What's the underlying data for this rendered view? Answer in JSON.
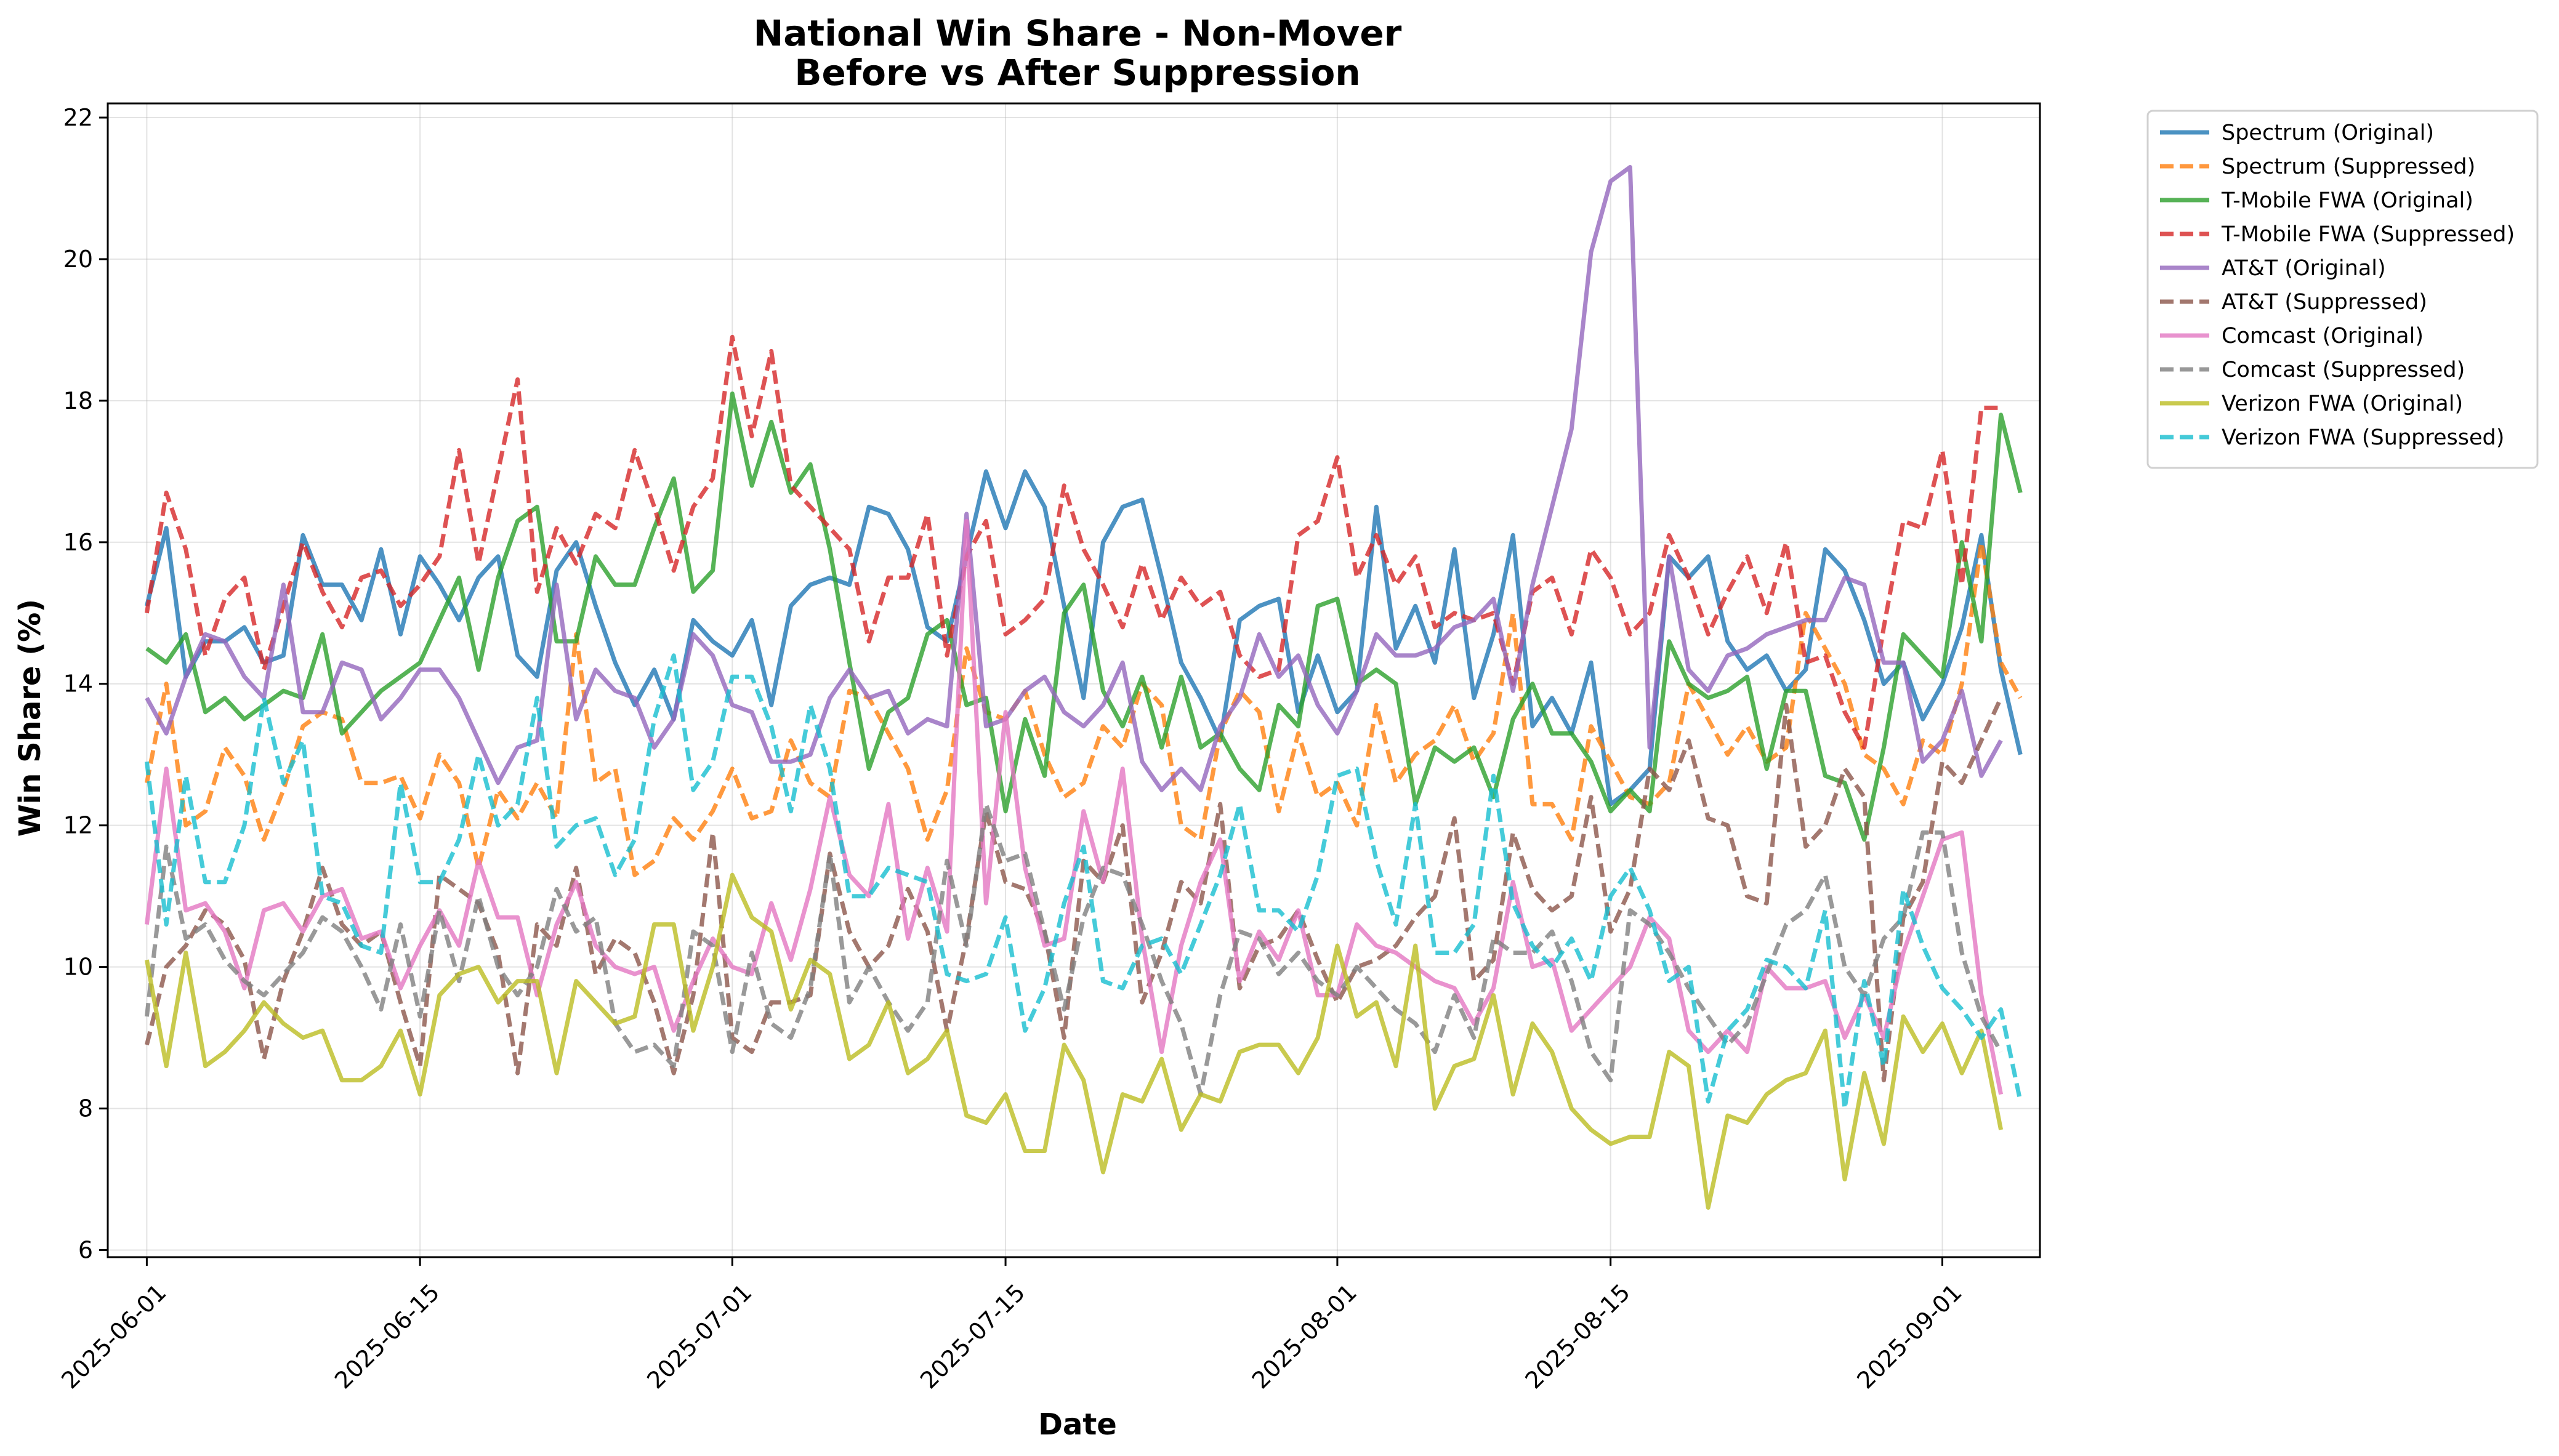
{
  "chart_data": {
    "type": "line",
    "title": "National Win Share - Non-Mover",
    "subtitle": "Before vs After Suppression",
    "xlabel": "Date",
    "ylabel": "Win Share (%)",
    "x_start": "2025-06-01",
    "x_step_days": 1,
    "xlim": [
      "2025-05-30",
      "2025-09-06"
    ],
    "ylim": [
      5.9,
      22.2
    ],
    "x_ticks": [
      "2025-06-01",
      "2025-06-15",
      "2025-07-01",
      "2025-07-15",
      "2025-08-01",
      "2025-08-15",
      "2025-09-01"
    ],
    "y_ticks": [
      6,
      8,
      10,
      12,
      14,
      16,
      18,
      20,
      22
    ],
    "grid": true,
    "legend_position": "outside-right-top",
    "series": [
      {
        "name": "Spectrum (Original)",
        "color": "#1f77b4",
        "style": "solid",
        "values": [
          15.1,
          16.2,
          14.1,
          14.6,
          14.6,
          14.8,
          14.3,
          14.4,
          16.1,
          15.4,
          15.4,
          14.9,
          15.9,
          14.7,
          15.8,
          15.4,
          14.9,
          15.5,
          15.8,
          14.4,
          14.1,
          15.6,
          16.0,
          15.1,
          14.3,
          13.7,
          14.2,
          13.5,
          14.9,
          14.6,
          14.4,
          14.9,
          13.7,
          15.1,
          15.4,
          15.5,
          15.4,
          16.5,
          16.4,
          15.9,
          14.8,
          14.6,
          15.8,
          17.0,
          16.2,
          17.0,
          16.5,
          15.1,
          13.8,
          16.0,
          16.5,
          16.6,
          15.5,
          14.3,
          13.8,
          13.2,
          14.9,
          15.1,
          15.2,
          13.6,
          14.4,
          13.6,
          13.9,
          16.5,
          14.5,
          15.1,
          14.3,
          15.9,
          13.8,
          14.7,
          16.1,
          13.4,
          13.8,
          13.3,
          14.3,
          12.3,
          12.5,
          12.8,
          15.8,
          15.5,
          15.8,
          14.6,
          14.2,
          14.4,
          13.9,
          14.2,
          15.9,
          15.6,
          14.9,
          14.0,
          14.3,
          13.5,
          14.0,
          14.8,
          16.1,
          14.2,
          13.0
        ]
      },
      {
        "name": "Spectrum (Suppressed)",
        "color": "#ff7f0e",
        "style": "dashed",
        "values": [
          12.6,
          14.0,
          12.0,
          12.2,
          13.1,
          12.7,
          11.8,
          12.5,
          13.4,
          13.6,
          13.5,
          12.6,
          12.6,
          12.7,
          12.1,
          13.0,
          12.6,
          11.4,
          12.5,
          12.1,
          12.6,
          12.1,
          14.7,
          12.6,
          12.8,
          11.3,
          11.5,
          12.1,
          11.8,
          12.2,
          12.8,
          12.1,
          12.2,
          13.2,
          12.6,
          12.4,
          13.9,
          13.8,
          13.3,
          12.8,
          11.8,
          12.5,
          14.5,
          13.6,
          13.5,
          13.9,
          13.0,
          12.4,
          12.6,
          13.4,
          13.1,
          14.0,
          13.7,
          12.0,
          11.8,
          13.3,
          13.9,
          13.6,
          12.2,
          13.3,
          12.4,
          12.6,
          12.0,
          13.7,
          12.6,
          13.0,
          13.2,
          13.7,
          12.9,
          13.3,
          15.0,
          12.3,
          12.3,
          11.8,
          13.4,
          12.9,
          12.4,
          12.3,
          12.6,
          14.0,
          13.5,
          13.0,
          13.4,
          12.9,
          13.1,
          15.0,
          14.5,
          14.0,
          13.0,
          12.8,
          12.3,
          13.2,
          13.0,
          14.0,
          16.0,
          14.3,
          13.8
        ]
      },
      {
        "name": "T-Mobile FWA (Original)",
        "color": "#2ca02c",
        "style": "solid",
        "values": [
          14.5,
          14.3,
          14.7,
          13.6,
          13.8,
          13.5,
          13.7,
          13.9,
          13.8,
          14.7,
          13.3,
          13.6,
          13.9,
          14.1,
          14.3,
          14.9,
          15.5,
          14.2,
          15.5,
          16.3,
          16.5,
          14.6,
          14.6,
          15.8,
          15.4,
          15.4,
          16.2,
          16.9,
          15.3,
          15.6,
          18.1,
          16.8,
          17.7,
          16.7,
          17.1,
          15.9,
          14.3,
          12.8,
          13.6,
          13.8,
          14.7,
          14.9,
          13.7,
          13.8,
          12.2,
          13.5,
          12.7,
          15.0,
          15.4,
          13.9,
          13.4,
          14.1,
          13.1,
          14.1,
          13.1,
          13.3,
          12.8,
          12.5,
          13.7,
          13.4,
          15.1,
          15.2,
          14.0,
          14.2,
          14.0,
          12.3,
          13.1,
          12.9,
          13.1,
          12.4,
          13.5,
          14.0,
          13.3,
          13.3,
          12.9,
          12.2,
          12.5,
          12.2,
          14.6,
          14.0,
          13.8,
          13.9,
          14.1,
          12.8,
          13.9,
          13.9,
          12.7,
          12.6,
          11.8,
          13.1,
          14.7,
          14.4,
          14.1,
          16.0,
          14.6,
          17.8,
          16.7
        ]
      },
      {
        "name": "T-Mobile FWA (Suppressed)",
        "color": "#d62728",
        "style": "dashed",
        "values": [
          15.0,
          16.7,
          15.9,
          14.4,
          15.2,
          15.5,
          14.2,
          15.1,
          16.0,
          15.3,
          14.8,
          15.5,
          15.6,
          15.1,
          15.4,
          15.8,
          17.3,
          15.7,
          17.0,
          18.3,
          15.3,
          16.2,
          15.7,
          16.4,
          16.2,
          17.3,
          16.5,
          15.6,
          16.5,
          16.9,
          18.9,
          17.5,
          18.7,
          16.8,
          16.5,
          16.2,
          15.9,
          14.6,
          15.5,
          15.5,
          16.4,
          14.4,
          15.8,
          16.3,
          14.7,
          14.9,
          15.2,
          16.8,
          15.9,
          15.4,
          14.8,
          15.7,
          14.9,
          15.5,
          15.1,
          15.3,
          14.4,
          14.1,
          14.2,
          16.1,
          16.3,
          17.2,
          15.5,
          16.1,
          15.4,
          15.8,
          14.8,
          15.0,
          14.9,
          15.0,
          14.0,
          15.3,
          15.5,
          14.7,
          15.9,
          15.5,
          14.7,
          15.0,
          16.1,
          15.5,
          14.7,
          15.3,
          15.8,
          15.0,
          16.0,
          14.3,
          14.4,
          13.6,
          13.1,
          14.8,
          16.3,
          16.2,
          17.3,
          15.4,
          17.9,
          17.9
        ]
      },
      {
        "name": "AT&T (Original)",
        "color": "#9467bd",
        "style": "solid",
        "values": [
          13.8,
          13.3,
          14.1,
          14.7,
          14.6,
          14.1,
          13.8,
          15.4,
          13.6,
          13.6,
          14.3,
          14.2,
          13.5,
          13.8,
          14.2,
          14.2,
          13.8,
          13.2,
          12.6,
          13.1,
          13.2,
          15.4,
          13.5,
          14.2,
          13.9,
          13.8,
          13.1,
          13.5,
          14.7,
          14.4,
          13.7,
          13.6,
          12.9,
          12.9,
          13.0,
          13.8,
          14.2,
          13.8,
          13.9,
          13.3,
          13.5,
          13.4,
          16.4,
          13.4,
          13.5,
          13.9,
          14.1,
          13.6,
          13.4,
          13.7,
          14.3,
          12.9,
          12.5,
          12.8,
          12.5,
          13.4,
          13.8,
          14.7,
          14.1,
          14.4,
          13.7,
          13.3,
          13.9,
          14.7,
          14.4,
          14.4,
          14.5,
          14.8,
          14.9,
          15.2,
          13.9,
          15.4,
          16.5,
          17.6,
          20.1,
          21.1,
          21.3,
          13.1,
          15.8,
          14.2,
          13.9,
          14.4,
          14.5,
          14.7,
          14.8,
          14.9,
          14.9,
          15.5,
          15.4,
          14.3,
          14.3,
          12.9,
          13.2,
          13.9,
          12.7,
          13.2
        ]
      },
      {
        "name": "AT&T (Suppressed)",
        "color": "#8c564b",
        "style": "dashed",
        "values": [
          8.9,
          10.0,
          10.3,
          10.8,
          10.6,
          10.1,
          8.7,
          9.8,
          10.5,
          11.4,
          10.6,
          10.3,
          10.5,
          9.5,
          8.6,
          11.3,
          11.1,
          10.9,
          10.2,
          8.5,
          10.6,
          10.3,
          11.4,
          9.9,
          10.4,
          10.2,
          9.5,
          8.5,
          9.6,
          11.9,
          9.0,
          8.8,
          9.5,
          9.5,
          9.6,
          11.6,
          10.5,
          10.0,
          10.3,
          11.1,
          10.5,
          9.1,
          10.4,
          12.2,
          11.2,
          11.1,
          10.5,
          9.0,
          11.5,
          11.2,
          12.0,
          9.5,
          10.2,
          11.2,
          10.9,
          12.3,
          9.7,
          10.3,
          10.4,
          10.8,
          10.1,
          9.5,
          10.0,
          10.1,
          10.3,
          10.7,
          11.0,
          12.1,
          9.8,
          10.1,
          11.9,
          11.1,
          10.8,
          11.0,
          12.4,
          10.5,
          11.1,
          12.8,
          12.5,
          13.2,
          12.1,
          12.0,
          11.0,
          10.9,
          13.7,
          11.7,
          12.0,
          12.8,
          12.4,
          8.4,
          10.7,
          11.2,
          12.9,
          12.6,
          13.2,
          13.8
        ]
      },
      {
        "name": "Comcast (Original)",
        "color": "#e377c2",
        "style": "solid",
        "values": [
          10.6,
          12.8,
          10.8,
          10.9,
          10.5,
          9.7,
          10.8,
          10.9,
          10.5,
          11.0,
          11.1,
          10.4,
          10.5,
          9.7,
          10.3,
          10.8,
          10.3,
          11.5,
          10.7,
          10.7,
          9.6,
          10.6,
          11.2,
          10.3,
          10.0,
          9.9,
          10.0,
          9.1,
          9.8,
          10.4,
          10.0,
          9.9,
          10.9,
          10.1,
          11.1,
          12.4,
          11.3,
          11.0,
          12.3,
          10.4,
          11.4,
          10.5,
          16.3,
          10.9,
          13.6,
          11.4,
          10.3,
          10.4,
          12.2,
          11.2,
          12.8,
          10.4,
          8.8,
          10.3,
          11.2,
          11.8,
          9.8,
          10.5,
          10.1,
          10.8,
          9.6,
          9.6,
          10.6,
          10.3,
          10.2,
          10.0,
          9.8,
          9.7,
          9.2,
          9.7,
          11.2,
          10.0,
          10.1,
          9.1,
          9.4,
          9.7,
          10.0,
          10.7,
          10.4,
          9.1,
          8.8,
          9.1,
          8.8,
          10.0,
          9.7,
          9.7,
          9.8,
          9.0,
          9.6,
          9.0,
          10.2,
          11.0,
          11.8,
          11.9,
          9.6,
          8.2
        ]
      },
      {
        "name": "Comcast (Suppressed)",
        "color": "#7f7f7f",
        "style": "dashed",
        "values": [
          9.3,
          11.7,
          10.4,
          10.6,
          10.1,
          9.8,
          9.6,
          9.9,
          10.2,
          10.7,
          10.5,
          10.0,
          9.4,
          10.6,
          9.3,
          10.8,
          9.8,
          11.0,
          10.0,
          9.6,
          10.0,
          11.1,
          10.5,
          10.7,
          9.2,
          8.8,
          8.9,
          8.6,
          10.5,
          10.3,
          8.8,
          10.2,
          9.2,
          9.0,
          9.7,
          11.6,
          9.5,
          10.0,
          9.5,
          9.1,
          9.5,
          11.5,
          10.3,
          12.3,
          11.5,
          11.6,
          10.5,
          9.4,
          10.7,
          11.4,
          11.3,
          10.6,
          9.8,
          9.2,
          8.2,
          9.6,
          10.5,
          10.4,
          9.9,
          10.2,
          9.8,
          9.6,
          10.0,
          9.7,
          9.4,
          9.2,
          8.8,
          9.6,
          9.0,
          10.4,
          10.2,
          10.2,
          10.5,
          9.8,
          8.8,
          8.4,
          10.8,
          10.6,
          10.2,
          9.7,
          9.3,
          8.9,
          9.2,
          9.9,
          10.6,
          10.8,
          11.3,
          10.0,
          9.6,
          10.4,
          10.7,
          11.9,
          11.9,
          10.2,
          9.3,
          8.8
        ]
      },
      {
        "name": "Verizon FWA (Original)",
        "color": "#bcbd22",
        "style": "solid",
        "values": [
          10.1,
          8.6,
          10.2,
          8.6,
          8.8,
          9.1,
          9.5,
          9.2,
          9.0,
          9.1,
          8.4,
          8.4,
          8.6,
          9.1,
          8.2,
          9.6,
          9.9,
          10.0,
          9.5,
          9.8,
          9.8,
          8.5,
          9.8,
          9.5,
          9.2,
          9.3,
          10.6,
          10.6,
          9.1,
          10.0,
          11.3,
          10.7,
          10.5,
          9.4,
          10.1,
          9.9,
          8.7,
          8.9,
          9.5,
          8.5,
          8.7,
          9.1,
          7.9,
          7.8,
          8.2,
          7.4,
          7.4,
          8.9,
          8.4,
          7.1,
          8.2,
          8.1,
          8.7,
          7.7,
          8.2,
          8.1,
          8.8,
          8.9,
          8.9,
          8.5,
          9.0,
          10.3,
          9.3,
          9.5,
          8.6,
          10.3,
          8.0,
          8.6,
          8.7,
          9.6,
          8.2,
          9.2,
          8.8,
          8.0,
          7.7,
          7.5,
          7.6,
          7.6,
          8.8,
          8.6,
          6.6,
          7.9,
          7.8,
          8.2,
          8.4,
          8.5,
          9.1,
          7.0,
          8.5,
          7.5,
          9.3,
          8.8,
          9.2,
          8.5,
          9.1,
          7.7
        ]
      },
      {
        "name": "Verizon FWA (Suppressed)",
        "color": "#17becf",
        "style": "dashed",
        "values": [
          12.9,
          10.6,
          12.7,
          11.2,
          11.2,
          12.0,
          13.8,
          12.6,
          13.2,
          11.0,
          10.9,
          10.3,
          10.2,
          12.6,
          11.2,
          11.2,
          11.8,
          13.0,
          12.0,
          12.3,
          13.8,
          11.7,
          12.0,
          12.1,
          11.3,
          11.8,
          13.5,
          14.4,
          12.5,
          12.9,
          14.1,
          14.1,
          13.4,
          12.2,
          13.7,
          12.8,
          11.0,
          11.0,
          11.4,
          11.3,
          11.2,
          9.9,
          9.8,
          9.9,
          10.7,
          9.1,
          9.7,
          10.9,
          11.7,
          9.8,
          9.7,
          10.3,
          10.4,
          9.9,
          10.6,
          11.3,
          12.3,
          10.8,
          10.8,
          10.5,
          11.3,
          12.7,
          12.8,
          11.5,
          10.6,
          12.3,
          10.2,
          10.2,
          10.6,
          12.7,
          10.9,
          10.3,
          10.0,
          10.4,
          9.8,
          11.0,
          11.4,
          10.8,
          9.8,
          10.0,
          8.1,
          9.1,
          9.4,
          10.1,
          10.0,
          9.7,
          10.8,
          8.0,
          9.8,
          8.6,
          11.1,
          10.3,
          9.7,
          9.4,
          9.0,
          9.4,
          8.1
        ]
      }
    ]
  }
}
